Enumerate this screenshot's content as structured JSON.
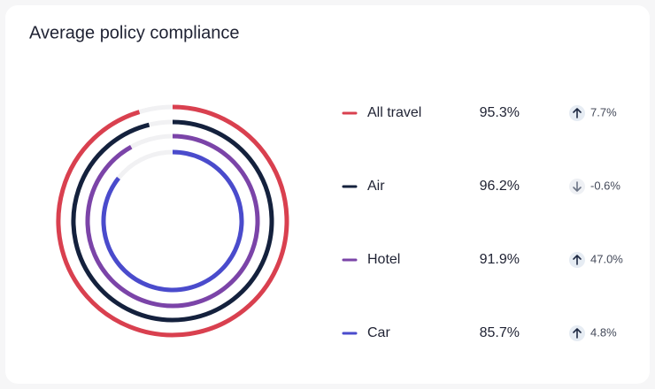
{
  "chart_data": {
    "type": "radial-bar",
    "title": "Average policy compliance",
    "categories": [
      "All travel",
      "Air",
      "Hotel",
      "Car"
    ],
    "values": [
      95.3,
      96.2,
      91.9,
      85.7
    ],
    "value_labels": [
      "95.3%",
      "96.2%",
      "91.9%",
      "85.7%"
    ],
    "colors": [
      "#d9404f",
      "#14213d",
      "#7b44a8",
      "#4a4bcc"
    ],
    "changes": [
      7.7,
      -0.6,
      47.0,
      4.8
    ],
    "change_labels": [
      "7.7%",
      "-0.6%",
      "47.0%",
      "4.8%"
    ],
    "max": 100
  }
}
